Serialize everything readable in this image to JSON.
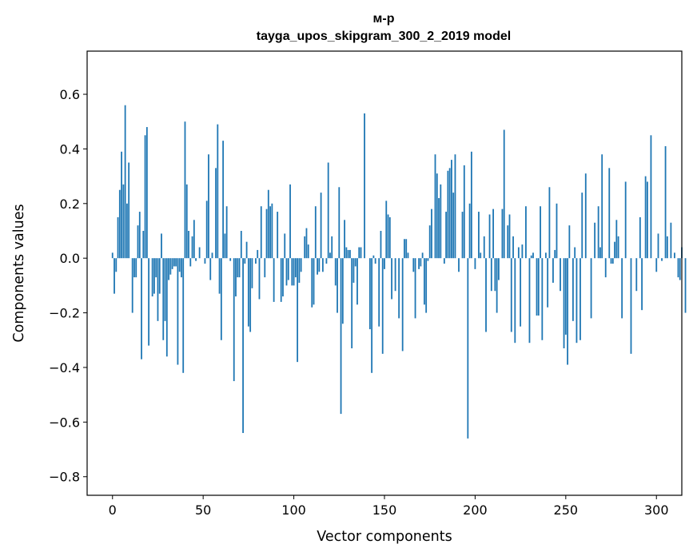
{
  "chart_data": {
    "type": "bar",
    "title_line1": "м-р",
    "title_line2": "tayga_upos_skipgram_300_2_2019 model",
    "xlabel": "Vector components",
    "ylabel": "Components values",
    "xlim": [
      -14,
      314
    ],
    "ylim": [
      -0.868,
      0.758
    ],
    "x_ticks": [
      0,
      50,
      100,
      150,
      200,
      250,
      300
    ],
    "x_tick_labels": [
      "0",
      "50",
      "100",
      "150",
      "200",
      "250",
      "300"
    ],
    "y_ticks": [
      -0.8,
      -0.6,
      -0.4,
      -0.2,
      0.0,
      0.2,
      0.4,
      0.6
    ],
    "y_tick_labels": [
      "−0.8",
      "−0.6",
      "−0.4",
      "−0.2",
      "0.0",
      "0.2",
      "0.4",
      "0.6"
    ],
    "bar_color": "#1f77b4",
    "values": [
      0.02,
      -0.13,
      -0.05,
      0.15,
      0.25,
      0.39,
      0.27,
      0.56,
      0.2,
      0.35,
      0.0,
      -0.2,
      -0.07,
      -0.07,
      0.12,
      0.17,
      -0.37,
      0.1,
      0.45,
      0.48,
      -0.32,
      0.0,
      -0.14,
      -0.13,
      -0.07,
      -0.23,
      -0.13,
      0.09,
      -0.3,
      -0.23,
      -0.36,
      -0.08,
      -0.06,
      -0.04,
      -0.03,
      -0.03,
      -0.39,
      -0.05,
      -0.07,
      -0.42,
      0.5,
      0.27,
      0.1,
      -0.03,
      0.08,
      0.14,
      -0.01,
      0.0,
      0.04,
      0.0,
      0.0,
      -0.02,
      0.21,
      0.38,
      -0.08,
      0.02,
      0.0,
      0.33,
      0.49,
      -0.13,
      -0.3,
      0.43,
      0.09,
      0.19,
      0.0,
      -0.01,
      0.0,
      -0.45,
      -0.14,
      -0.07,
      -0.07,
      0.1,
      -0.64,
      -0.02,
      0.06,
      -0.25,
      -0.27,
      -0.11,
      0.0,
      -0.02,
      0.03,
      -0.15,
      0.19,
      0.0,
      -0.07,
      0.18,
      0.25,
      0.19,
      0.2,
      -0.16,
      0.0,
      0.17,
      0.0,
      -0.16,
      -0.14,
      0.09,
      -0.1,
      -0.08,
      0.27,
      -0.1,
      -0.1,
      -0.07,
      -0.38,
      -0.09,
      -0.05,
      0.0,
      0.08,
      0.11,
      0.05,
      0.0,
      -0.18,
      -0.17,
      0.19,
      -0.06,
      -0.05,
      0.24,
      -0.05,
      0.0,
      -0.02,
      0.35,
      0.02,
      0.08,
      0.0,
      -0.1,
      -0.2,
      0.26,
      -0.57,
      -0.24,
      0.14,
      0.04,
      0.03,
      0.03,
      -0.33,
      -0.09,
      -0.03,
      -0.17,
      0.04,
      0.04,
      0.0,
      0.53,
      0.0,
      0.0,
      -0.26,
      -0.42,
      0.01,
      -0.02,
      0.0,
      -0.25,
      0.1,
      -0.35,
      -0.04,
      0.21,
      0.16,
      0.15,
      -0.15,
      0.0,
      -0.12,
      0.0,
      -0.22,
      0.0,
      -0.34,
      0.07,
      0.07,
      0.02,
      0.0,
      0.0,
      -0.05,
      -0.22,
      0.0,
      -0.04,
      -0.03,
      0.02,
      -0.17,
      -0.2,
      -0.01,
      0.12,
      0.18,
      0.0,
      0.38,
      0.31,
      0.22,
      0.27,
      0.0,
      -0.02,
      0.17,
      0.32,
      0.33,
      0.36,
      0.24,
      0.38,
      0.0,
      -0.05,
      0.0,
      0.17,
      0.34,
      0.0,
      -0.66,
      0.2,
      0.39,
      0.0,
      -0.04,
      0.0,
      0.17,
      0.02,
      0.0,
      0.08,
      -0.27,
      0.0,
      0.16,
      -0.12,
      0.18,
      -0.12,
      -0.2,
      -0.08,
      0.0,
      0.18,
      0.47,
      0.0,
      0.12,
      0.16,
      -0.27,
      0.08,
      -0.31,
      0.0,
      0.04,
      -0.25,
      0.05,
      0.0,
      0.19,
      0.0,
      -0.31,
      0.01,
      0.02,
      0.0,
      -0.21,
      -0.21,
      0.19,
      -0.3,
      0.0,
      0.02,
      -0.18,
      0.26,
      0.0,
      -0.09,
      0.03,
      0.2,
      0.0,
      -0.12,
      0.0,
      -0.33,
      -0.28,
      -0.39,
      0.12,
      0.0,
      -0.23,
      0.04,
      -0.31,
      0.0,
      -0.3,
      0.24,
      0.0,
      0.31,
      0.0,
      0.0,
      -0.22,
      0.0,
      0.13,
      0.0,
      0.19,
      0.04,
      0.38,
      0.0,
      -0.07,
      0.0,
      0.33,
      -0.02,
      -0.02,
      0.06,
      0.14,
      0.08,
      0.0,
      -0.22,
      0.0,
      0.28,
      0.0,
      0.0,
      -0.35,
      0.0,
      0.0,
      -0.12,
      0.0,
      0.15,
      -0.19,
      0.0,
      0.3,
      0.28,
      0.0,
      0.45,
      0.0,
      0.0,
      -0.05,
      0.09,
      0.0,
      -0.01,
      0.0,
      0.41,
      0.08,
      0.0,
      0.13,
      0.0,
      0.02,
      0.0,
      -0.07,
      -0.08,
      0.04,
      0.0,
      -0.2
    ]
  }
}
